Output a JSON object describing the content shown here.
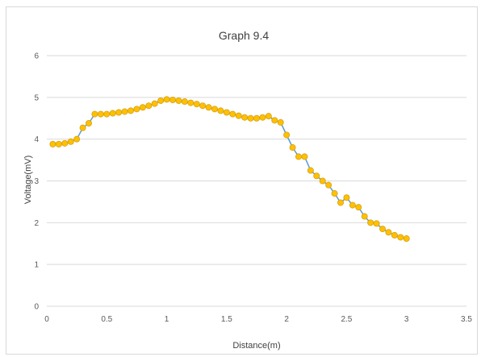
{
  "chart_data": {
    "type": "scatter",
    "title": "Graph  9.4",
    "xlabel": "Distance(m)",
    "ylabel": "Voltage(mV)",
    "xlim": [
      0,
      3.5
    ],
    "ylim": [
      0,
      6
    ],
    "x_ticks": [
      "0",
      "0.5",
      "1",
      "1.5",
      "2",
      "2.5",
      "3",
      "3.5"
    ],
    "y_ticks": [
      "0",
      "1",
      "2",
      "3",
      "4",
      "5",
      "6"
    ],
    "grid": "horizontal",
    "legend": "none",
    "line_color": "#5b9bd5",
    "marker_color": "#ffc000",
    "marker_edge_color": "#d4a017",
    "grid_color": "#d9d9d9",
    "series": [
      {
        "x": [
          0.05,
          0.1,
          0.15,
          0.2,
          0.25,
          0.3,
          0.35,
          0.4,
          0.45,
          0.5,
          0.55,
          0.6,
          0.65,
          0.7,
          0.75,
          0.8,
          0.85,
          0.9,
          0.95,
          1.0,
          1.05,
          1.1,
          1.15,
          1.2,
          1.25,
          1.3,
          1.35,
          1.4,
          1.45,
          1.5,
          1.55,
          1.6,
          1.65,
          1.7,
          1.75,
          1.8,
          1.85,
          1.9,
          1.95,
          2.0,
          2.05,
          2.1,
          2.15,
          2.2,
          2.25,
          2.3,
          2.35,
          2.4,
          2.45,
          2.5,
          2.55,
          2.6,
          2.65,
          2.7,
          2.75,
          2.8,
          2.85,
          2.9,
          2.95,
          3.0
        ],
        "y": [
          3.88,
          3.88,
          3.9,
          3.94,
          4.0,
          4.27,
          4.38,
          4.6,
          4.6,
          4.6,
          4.62,
          4.64,
          4.66,
          4.68,
          4.72,
          4.76,
          4.8,
          4.85,
          4.92,
          4.95,
          4.94,
          4.92,
          4.9,
          4.87,
          4.84,
          4.8,
          4.76,
          4.72,
          4.68,
          4.64,
          4.6,
          4.56,
          4.52,
          4.5,
          4.5,
          4.52,
          4.55,
          4.45,
          4.4,
          4.1,
          3.8,
          3.58,
          3.58,
          3.25,
          3.12,
          3.0,
          2.9,
          2.7,
          2.48,
          2.6,
          2.42,
          2.37,
          2.15,
          2.0,
          1.98,
          1.85,
          1.77,
          1.7,
          1.65,
          1.62
        ]
      }
    ]
  }
}
